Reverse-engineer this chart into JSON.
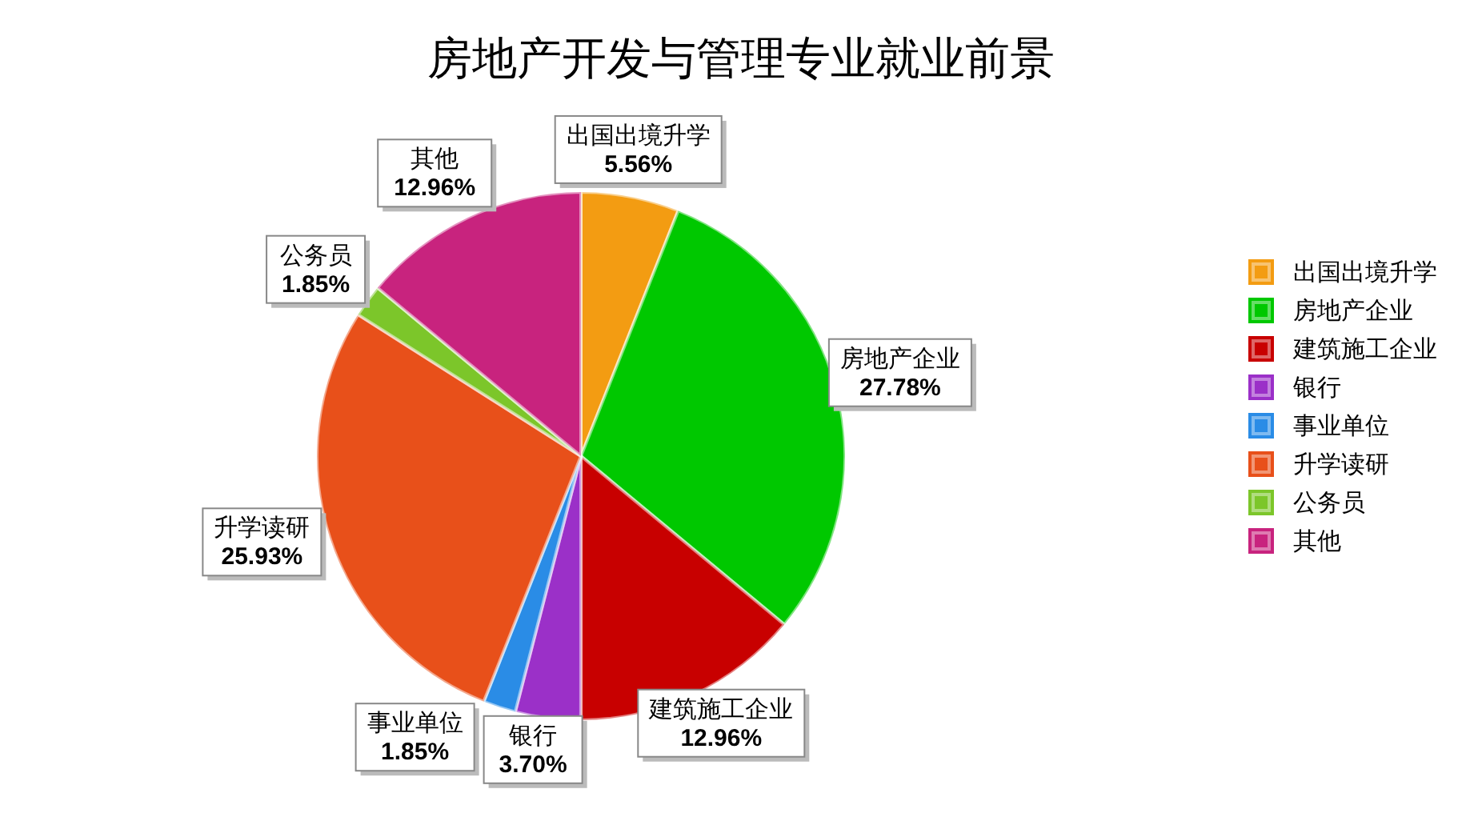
{
  "chart_data": {
    "type": "pie",
    "title": "房地产开发与管理专业就业前景",
    "categories": [
      "出国出境升学",
      "房地产企业",
      "建筑施工企业",
      "银行",
      "事业单位",
      "升学读研",
      "公务员",
      "其他"
    ],
    "values": [
      5.56,
      27.78,
      12.96,
      3.7,
      1.85,
      25.93,
      1.85,
      12.96
    ],
    "value_labels": [
      "5.56%",
      "27.78%",
      "12.96%",
      "3.70%",
      "1.85%",
      "25.93%",
      "1.85%",
      "12.96%"
    ],
    "colors": [
      "#f39c12",
      "#00c800",
      "#c80000",
      "#9b30c8",
      "#2a8ce6",
      "#e8501a",
      "#7cc62a",
      "#c8237e"
    ],
    "legend": "right"
  }
}
